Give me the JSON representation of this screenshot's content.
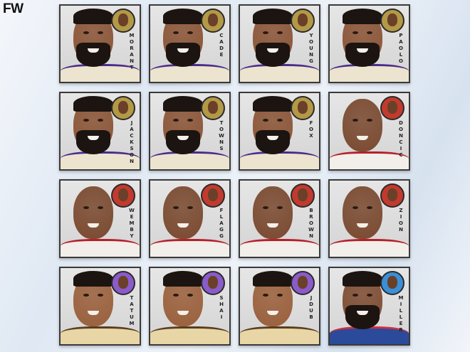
{
  "logo": "FW",
  "themes": {
    "lebron": {
      "skin": "#8a5436",
      "badge": "#b39846",
      "jersey": "#ece4cf",
      "accent": "#4b2c8a",
      "beard": true
    },
    "jordan": {
      "skin": "#7a4a30",
      "badge": "#c23a2e",
      "jersey": "#f2eeea",
      "accent": "#b5202a",
      "beard": false
    },
    "kobe": {
      "skin": "#9a603c",
      "badge": "#8a5bc9",
      "jersey": "#e8d6a6",
      "accent": "#5a3c1e",
      "beard": false
    },
    "george": {
      "skin": "#7e4c32",
      "badge": "#3a8fd6",
      "jersey": "#2c4a9a",
      "accent": "#d03040",
      "beard": true
    }
  },
  "cards": [
    {
      "theme": "lebron",
      "name": "MORANT"
    },
    {
      "theme": "lebron",
      "name": "CADE"
    },
    {
      "theme": "lebron",
      "name": "YOUNG"
    },
    {
      "theme": "lebron",
      "name": "PAOLO"
    },
    {
      "theme": "lebron",
      "name": "JACKSON"
    },
    {
      "theme": "lebron",
      "name": "TOWNS"
    },
    {
      "theme": "lebron",
      "name": "FOX"
    },
    {
      "theme": "jordan",
      "name": "DONCIC"
    },
    {
      "theme": "jordan",
      "name": "WEMBY"
    },
    {
      "theme": "jordan",
      "name": "FLAGG"
    },
    {
      "theme": "jordan",
      "name": "BROWN"
    },
    {
      "theme": "jordan",
      "name": "ZION"
    },
    {
      "theme": "kobe",
      "name": "TATUM"
    },
    {
      "theme": "kobe",
      "name": "SHAI"
    },
    {
      "theme": "kobe",
      "name": "JDUB"
    },
    {
      "theme": "george",
      "name": "MILLER"
    }
  ]
}
